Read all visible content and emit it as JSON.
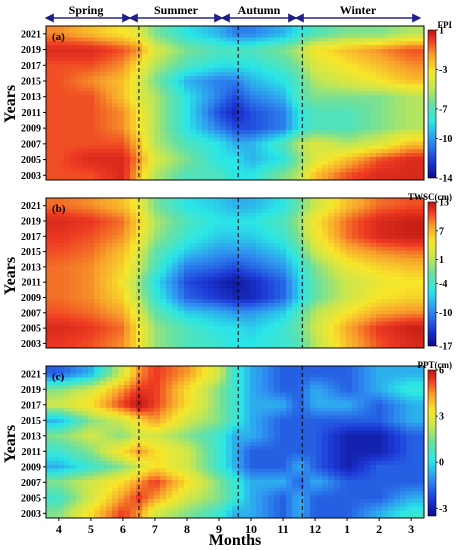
{
  "chart_data": [
    {
      "type": "heatmap",
      "panel_label": "(a)",
      "colorbar_title": "FPI",
      "colorbar_ticks": [
        1,
        -3,
        -7,
        -10,
        -14
      ],
      "vmin": -14,
      "vmax": 1,
      "grid_x": [
        4,
        5,
        6,
        6.5,
        7,
        8,
        9,
        9.5,
        10,
        11,
        11.5,
        12,
        13,
        14,
        15
      ],
      "grid_y": [
        2003,
        2005,
        2007,
        2009,
        2011,
        2013,
        2015,
        2017,
        2019,
        2021
      ],
      "values": [
        [
          -1,
          -1,
          0,
          -3,
          -6,
          -8,
          -8,
          -9,
          -9,
          -7,
          -6,
          -3,
          -1,
          0,
          0
        ],
        [
          -1,
          0,
          0,
          -2,
          -5,
          -7,
          -9,
          -9,
          -10,
          -9,
          -7,
          -5,
          -3,
          -1,
          0
        ],
        [
          -1,
          -1,
          -1,
          -3,
          -6,
          -8,
          -9,
          -10,
          -10,
          -8,
          -6,
          -5,
          -6,
          -5,
          -3
        ],
        [
          -1,
          -1,
          -2,
          -4,
          -6,
          -9,
          -11,
          -12,
          -12,
          -11,
          -9,
          -8,
          -8,
          -7,
          -6
        ],
        [
          -1,
          -1,
          -2,
          -4,
          -6,
          -9,
          -12,
          -13,
          -12,
          -11,
          -9,
          -8,
          -8,
          -7,
          -6
        ],
        [
          -1,
          -1,
          -3,
          -5,
          -6,
          -9,
          -11,
          -12,
          -11,
          -10,
          -8,
          -7,
          -7,
          -7,
          -6
        ],
        [
          -1,
          -2,
          -3,
          -5,
          -7,
          -10,
          -11,
          -11,
          -10,
          -9,
          -8,
          -6,
          -5,
          -4,
          -3
        ],
        [
          -1,
          -1,
          -2,
          -4,
          -6,
          -8,
          -9,
          -9,
          -9,
          -8,
          -7,
          -5,
          -4,
          -3,
          -2
        ],
        [
          0,
          0,
          -1,
          -2,
          -5,
          -7,
          -8,
          -8,
          -8,
          -7,
          -6,
          -4,
          -3,
          -2,
          -1
        ],
        [
          -2,
          -3,
          -4,
          -5,
          -7,
          -9,
          -10,
          -11,
          -11,
          -10,
          -9,
          -8,
          -7,
          -7,
          -6
        ]
      ]
    },
    {
      "type": "heatmap",
      "panel_label": "(b)",
      "colorbar_title": "TWSC(cm)",
      "colorbar_ticks": [
        13,
        7,
        1,
        -4,
        -10,
        -17
      ],
      "vmin": -17,
      "vmax": 13,
      "grid_x": [
        4,
        5,
        6,
        6.5,
        7,
        8,
        9,
        9.5,
        10,
        11,
        11.5,
        12,
        13,
        14,
        15
      ],
      "grid_y": [
        2003,
        2005,
        2007,
        2009,
        2011,
        2013,
        2015,
        2017,
        2019,
        2021
      ],
      "values": [
        [
          10,
          9,
          7,
          3,
          -2,
          -5,
          -6,
          -7,
          -7,
          -6,
          -5,
          -1,
          5,
          9,
          11
        ],
        [
          11,
          10,
          8,
          3,
          -2,
          -5,
          -7,
          -7,
          -8,
          -6,
          -4,
          0,
          6,
          10,
          12
        ],
        [
          9,
          8,
          6,
          1,
          -4,
          -8,
          -9,
          -10,
          -10,
          -8,
          -5,
          -1,
          3,
          6,
          7
        ],
        [
          8,
          7,
          4,
          -1,
          -6,
          -12,
          -14,
          -15,
          -15,
          -12,
          -8,
          -4,
          0,
          3,
          4
        ],
        [
          8,
          7,
          3,
          -2,
          -7,
          -13,
          -15,
          -16,
          -15,
          -12,
          -8,
          -4,
          0,
          2,
          3
        ],
        [
          8,
          7,
          4,
          0,
          -5,
          -11,
          -12,
          -13,
          -12,
          -10,
          -7,
          -3,
          2,
          4,
          5
        ],
        [
          9,
          8,
          5,
          1,
          -4,
          -8,
          -10,
          -10,
          -10,
          -8,
          -5,
          0,
          5,
          7,
          8
        ],
        [
          10,
          9,
          7,
          3,
          -2,
          -6,
          -8,
          -8,
          -8,
          -6,
          -3,
          2,
          8,
          11,
          12
        ],
        [
          11,
          10,
          8,
          4,
          -1,
          -5,
          -7,
          -7,
          -7,
          -5,
          -2,
          3,
          8,
          11,
          12
        ],
        [
          8,
          7,
          5,
          2,
          -3,
          -7,
          -8,
          -9,
          -9,
          -7,
          -4,
          0,
          5,
          8,
          9
        ]
      ]
    },
    {
      "type": "heatmap",
      "panel_label": "(c)",
      "colorbar_title": "PPT(cm)",
      "colorbar_ticks": [
        6,
        3,
        0,
        -3
      ],
      "vmin": -3.5,
      "vmax": 6,
      "grid_x": [
        4,
        5,
        6,
        6.5,
        7,
        8,
        9,
        9.5,
        10,
        11,
        11.5,
        12,
        13,
        14,
        15
      ],
      "grid_y": [
        2003,
        2005,
        2007,
        2009,
        2011,
        2013,
        2015,
        2017,
        2019,
        2021
      ],
      "values": [
        [
          1,
          3,
          5,
          4,
          2,
          1,
          0,
          -1,
          -1,
          -2,
          -1,
          -2,
          -2,
          -1,
          0
        ],
        [
          0,
          2,
          4,
          5,
          4,
          2,
          1,
          0,
          -1,
          -2,
          -1,
          -2,
          -2,
          -2,
          -1
        ],
        [
          1,
          2,
          3,
          4,
          5,
          3,
          1,
          0,
          -1,
          -1,
          -2,
          -1,
          -2,
          -2,
          -2
        ],
        [
          -1,
          0,
          1,
          2,
          3,
          2,
          0,
          -1,
          -2,
          -2,
          -1,
          -2,
          -3,
          -2,
          -2
        ],
        [
          0,
          1,
          3,
          4,
          3,
          2,
          0,
          -1,
          -2,
          -2,
          -2,
          -2,
          -3,
          -3,
          -2
        ],
        [
          1,
          2,
          1,
          2,
          2,
          1,
          0,
          -1,
          -1,
          -2,
          -2,
          -2,
          -3,
          -3,
          -2
        ],
        [
          -1,
          1,
          2,
          3,
          4,
          2,
          1,
          0,
          -1,
          -2,
          -2,
          -2,
          -2,
          -2,
          -1
        ],
        [
          2,
          3,
          5,
          6,
          5,
          3,
          1,
          0,
          -1,
          -1,
          -2,
          -1,
          -1,
          -2,
          -1
        ],
        [
          1,
          2,
          4,
          5,
          5,
          3,
          1,
          0,
          -1,
          -2,
          -2,
          -1,
          -2,
          -1,
          0
        ],
        [
          -2,
          -1,
          2,
          4,
          5,
          4,
          2,
          0,
          -1,
          -2,
          -2,
          -2,
          -2,
          -1,
          -1
        ]
      ]
    }
  ],
  "seasons": [
    "Spring",
    "Summer",
    "Autumn",
    "Winter"
  ],
  "y_ticks": [
    "2021",
    "2019",
    "2017",
    "2015",
    "2013",
    "2011",
    "2009",
    "2007",
    "2005",
    "2003"
  ],
  "x_ticks": [
    "4",
    "5",
    "6",
    "7",
    "8",
    "9",
    "10",
    "11",
    "12",
    "1",
    "2",
    "3"
  ],
  "ylabel": "Years",
  "xlabel": "Months",
  "colormap": [
    "#0a0a8a",
    "#1e3cd8",
    "#2f8ff0",
    "#2ae6e6",
    "#6be0a0",
    "#c8e650",
    "#f7e62a",
    "#f8a22c",
    "#ee3a22",
    "#b81412"
  ]
}
